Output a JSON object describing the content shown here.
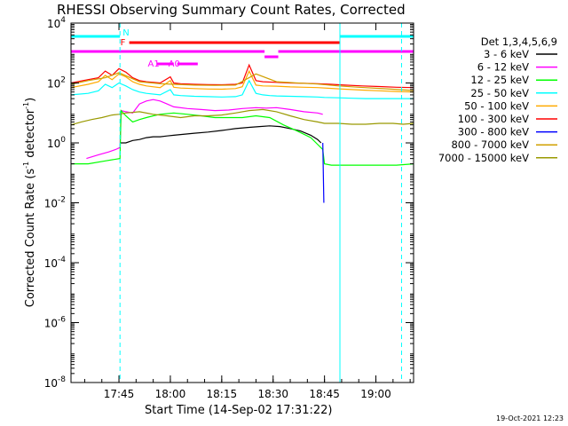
{
  "chart_data": {
    "type": "line",
    "title": "RHESSI Observing Summary Count Rates, Corrected",
    "xlabel": "Start Time (14-Sep-02 17:31:22)",
    "ylabel": "Corrected Count Rate (s⁻¹ detector⁻¹)",
    "ylabel_parts": [
      "Corrected Count Rate (s",
      "-1",
      " detector",
      "-1",
      ")"
    ],
    "x_unit": "minutes after 17:31:22",
    "xlim": [
      0,
      100
    ],
    "yscale": "log",
    "ylim": [
      1e-08,
      10000.0
    ],
    "x_ticks": [
      {
        "value": 14,
        "label": "17:45"
      },
      {
        "value": 29,
        "label": "18:00"
      },
      {
        "value": 44,
        "label": "18:15"
      },
      {
        "value": 59,
        "label": "18:30"
      },
      {
        "value": 74,
        "label": "18:45"
      },
      {
        "value": 89,
        "label": "19:00"
      }
    ],
    "y_ticks": [
      {
        "value": 10000.0,
        "base": "10",
        "exp": "4"
      },
      {
        "value": 100.0,
        "base": "10",
        "exp": "2"
      },
      {
        "value": 1,
        "base": "10",
        "exp": "0"
      },
      {
        "value": 0.01,
        "base": "10",
        "exp": "-2"
      },
      {
        "value": 0.0001,
        "base": "10",
        "exp": "-4"
      },
      {
        "value": 1e-06,
        "base": "10",
        "exp": "-6"
      },
      {
        "value": 1e-08,
        "base": "10",
        "exp": "-8"
      }
    ],
    "legend_title": "Det 1,3,4,5,6,9",
    "legend_position": "right",
    "series": [
      {
        "name": "3 - 6 keV",
        "color": "#000000",
        "x": [
          14.3,
          16,
          18,
          20,
          22,
          24,
          26,
          28,
          30,
          32,
          36,
          40,
          44,
          48,
          52,
          55,
          58,
          61,
          64,
          67,
          70,
          72,
          73
        ],
        "y": [
          1.0,
          1.0,
          1.2,
          1.3,
          1.5,
          1.6,
          1.6,
          1.7,
          1.8,
          1.9,
          2.1,
          2.3,
          2.6,
          3.0,
          3.3,
          3.5,
          3.7,
          3.5,
          3.0,
          2.5,
          1.8,
          1.3,
          1.0
        ]
      },
      {
        "name": "6 - 12 keV",
        "color": "#ff00ff",
        "x": [
          4.5,
          8,
          11,
          13,
          14.3,
          14.6,
          16,
          18,
          20,
          22,
          24,
          26,
          28,
          30,
          34,
          38,
          42,
          46,
          50,
          54,
          57,
          60,
          64,
          68,
          72,
          73.5
        ],
        "y": [
          0.3,
          0.4,
          0.5,
          0.6,
          0.7,
          12,
          11,
          10,
          20,
          25,
          28,
          25,
          20,
          16,
          14,
          13,
          12,
          12.5,
          14,
          15,
          14.5,
          15,
          13,
          11,
          10,
          9
        ]
      },
      {
        "name": "12 - 25 keV",
        "color": "#00ff00",
        "x": [
          0,
          5,
          10,
          14.3,
          14.6,
          16,
          18,
          20,
          22,
          24,
          26,
          30,
          34,
          38,
          42,
          46,
          50,
          54,
          58,
          62,
          66,
          70,
          73.5,
          74,
          76,
          80,
          85,
          90,
          95,
          100
        ],
        "y": [
          0.2,
          0.2,
          0.25,
          0.3,
          12,
          8,
          5,
          6,
          7,
          8,
          9,
          10,
          9,
          8,
          7,
          7,
          7,
          8,
          7,
          4,
          2.5,
          1.5,
          0.6,
          0.2,
          0.18,
          0.18,
          0.18,
          0.18,
          0.18,
          0.2
        ]
      },
      {
        "name": "25 - 50 keV",
        "color": "#00ffff",
        "x": [
          0,
          5,
          8,
          10,
          12,
          14,
          16,
          18,
          20,
          22,
          26,
          29,
          30,
          32,
          36,
          40,
          44,
          48,
          50,
          52,
          54,
          56,
          58,
          60,
          64,
          68,
          72,
          74,
          78,
          82,
          86,
          90,
          95,
          100
        ],
        "y": [
          40,
          45,
          55,
          90,
          70,
          100,
          80,
          60,
          50,
          45,
          40,
          60,
          40,
          38,
          36,
          35,
          34,
          35,
          40,
          120,
          45,
          40,
          38,
          37,
          36,
          35,
          34,
          33,
          32,
          31,
          30,
          30,
          30,
          30
        ]
      },
      {
        "name": "50 - 100 keV",
        "color": "#ffaa00",
        "x": [
          0,
          5,
          8,
          10,
          12,
          14,
          16,
          18,
          20,
          22,
          26,
          29,
          30,
          32,
          36,
          40,
          44,
          48,
          50,
          52,
          54,
          56,
          60,
          64,
          68,
          72,
          76,
          80,
          85,
          90,
          95,
          100
        ],
        "y": [
          70,
          90,
          110,
          180,
          130,
          200,
          160,
          110,
          90,
          80,
          70,
          120,
          72,
          68,
          65,
          63,
          62,
          65,
          75,
          250,
          85,
          80,
          78,
          74,
          72,
          70,
          66,
          62,
          58,
          55,
          52,
          50
        ]
      },
      {
        "name": "100 - 300 keV",
        "color": "#ff0000",
        "x": [
          0,
          5,
          8,
          10,
          12,
          14,
          16,
          18,
          20,
          22,
          26,
          29,
          30,
          32,
          36,
          40,
          44,
          48,
          50,
          52,
          54,
          56,
          60,
          64,
          68,
          72,
          76,
          80,
          85,
          90,
          95,
          100
        ],
        "y": [
          100,
          130,
          150,
          250,
          180,
          300,
          230,
          150,
          120,
          110,
          100,
          160,
          100,
          95,
          90,
          88,
          87,
          90,
          100,
          400,
          120,
          110,
          105,
          100,
          98,
          95,
          90,
          85,
          80,
          76,
          72,
          70
        ]
      },
      {
        "name": "300 - 800 keV",
        "color": "#0000ff",
        "x": [
          73.5,
          73.8
        ],
        "y": [
          1.0,
          0.01
        ]
      },
      {
        "name": "800 - 7000 keV",
        "color": "#d0a000",
        "x": [
          0,
          5,
          10,
          14,
          20,
          26,
          30,
          36,
          42,
          48,
          54,
          60,
          66,
          72,
          78,
          84,
          90,
          96,
          100
        ],
        "y": [
          90,
          120,
          150,
          220,
          110,
          95,
          90,
          85,
          83,
          85,
          200,
          110,
          100,
          92,
          80,
          72,
          66,
          60,
          56
        ]
      },
      {
        "name": "7000 - 15000 keV",
        "color": "#999900",
        "x": [
          0,
          3,
          6,
          9,
          12,
          14,
          16,
          20,
          24,
          28,
          32,
          36,
          40,
          44,
          48,
          52,
          56,
          60,
          64,
          68,
          72,
          74,
          78,
          82,
          86,
          90,
          94,
          97,
          100
        ],
        "y": [
          4,
          5,
          6,
          7,
          8.5,
          9,
          10,
          11,
          9,
          8,
          7,
          8,
          8,
          8.5,
          10,
          12,
          13,
          11,
          8,
          6,
          5,
          4.5,
          4.5,
          4.2,
          4.2,
          4.5,
          4.5,
          4.2,
          4.5
        ]
      }
    ],
    "event_bars": [
      {
        "label": "N",
        "color": "#00ffff",
        "intervals": [
          [
            0,
            14.3
          ],
          [
            78.5,
            100
          ]
        ]
      },
      {
        "label": "F",
        "color": "#ff0000",
        "intervals": [
          [
            17,
            78.5
          ]
        ]
      },
      {
        "label": "",
        "color": "#ff00ff",
        "intervals": [
          [
            0,
            56.5
          ],
          [
            60.5,
            100
          ]
        ]
      },
      {
        "label": "",
        "color": "#ff00ff",
        "intervals": [
          [
            56.5,
            60.5
          ]
        ]
      },
      {
        "label": "A1",
        "color": "#ff00ff",
        "intervals": [
          [
            25,
            30
          ]
        ]
      },
      {
        "label": "A0",
        "color": "#ff00ff",
        "intervals": [
          [
            31,
            37
          ]
        ]
      }
    ],
    "vertical_lines": [
      {
        "x": 0,
        "color": "#00ffff",
        "style": "solid"
      },
      {
        "x": 14.3,
        "color": "#00ffff",
        "style": "dashed"
      },
      {
        "x": 78.5,
        "color": "#00ffff",
        "style": "solid"
      },
      {
        "x": 96.5,
        "color": "#00ffff",
        "style": "dashed"
      }
    ],
    "footer_date": "19-Oct-2021 12:23"
  }
}
